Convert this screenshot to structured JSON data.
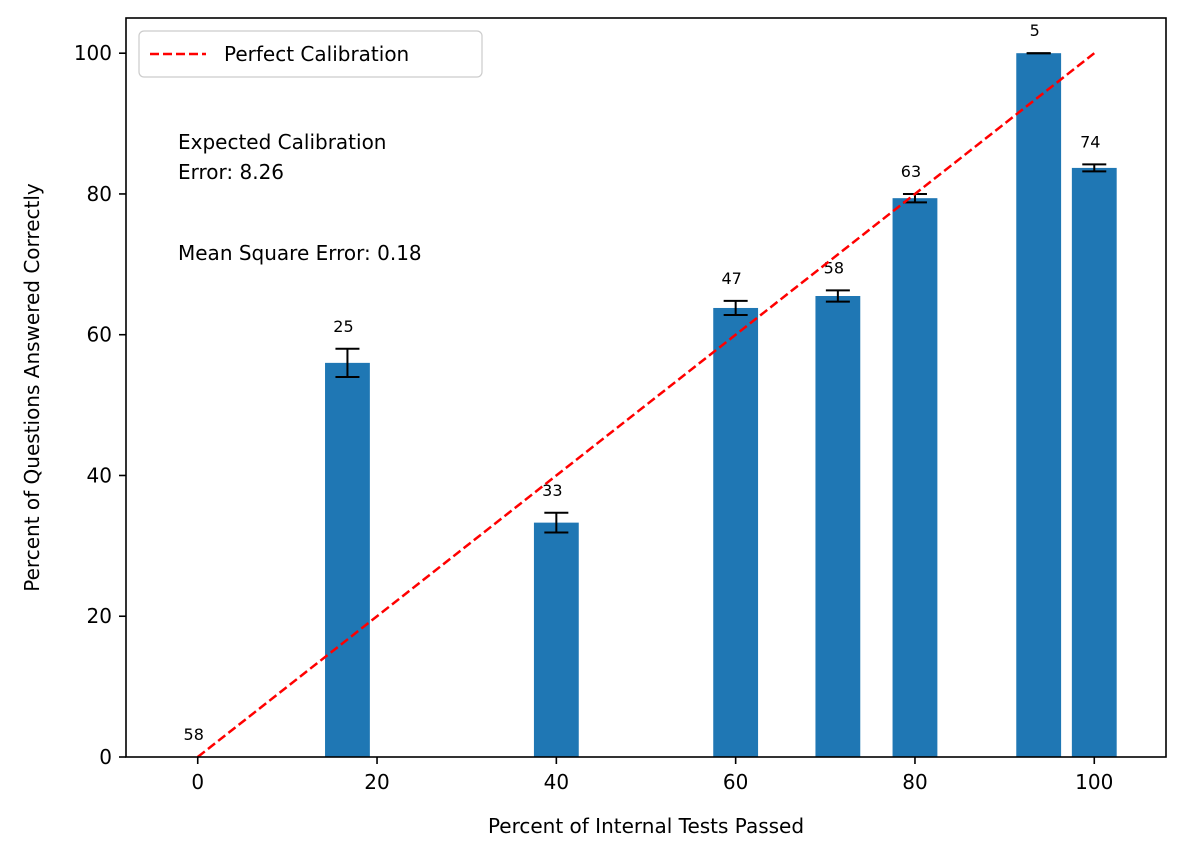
{
  "chart_data": {
    "type": "bar",
    "xlabel": "Percent of Internal Tests Passed",
    "ylabel": "Percent of Questions Answered Correctly",
    "xlim": [
      -8,
      108
    ],
    "ylim": [
      0,
      105
    ],
    "xticks": [
      0,
      20,
      40,
      60,
      80,
      100
    ],
    "yticks": [
      0,
      20,
      40,
      60,
      80,
      100
    ],
    "bar_width": 5,
    "bar_color": "#1f77b4",
    "bars": [
      {
        "x": 0,
        "y": 0,
        "err": 0,
        "count": "58"
      },
      {
        "x": 16.7,
        "y": 56.0,
        "err": 2.0,
        "count": "25"
      },
      {
        "x": 40.0,
        "y": 33.3,
        "err": 1.4,
        "count": "33"
      },
      {
        "x": 60.0,
        "y": 63.8,
        "err": 1.0,
        "count": "47"
      },
      {
        "x": 71.4,
        "y": 65.5,
        "err": 0.8,
        "count": "58"
      },
      {
        "x": 80.0,
        "y": 79.4,
        "err": 0.6,
        "count": "63"
      },
      {
        "x": 93.8,
        "y": 100.0,
        "err": 0.0,
        "count": "5"
      },
      {
        "x": 100.0,
        "y": 83.7,
        "err": 0.5,
        "count": "74"
      }
    ],
    "reference_line": {
      "name": "Perfect Calibration",
      "color": "#ff0000",
      "x": [
        0,
        100
      ],
      "y": [
        0,
        100
      ],
      "style": "dashed"
    },
    "legend": {
      "position": "top-left",
      "entries": [
        "Perfect Calibration"
      ]
    },
    "annotations": [
      {
        "lines": [
          "Expected Calibration",
          " Error: 8.26"
        ]
      },
      {
        "lines": [
          "Mean Square Error: 0.18"
        ]
      }
    ],
    "grid": false
  }
}
